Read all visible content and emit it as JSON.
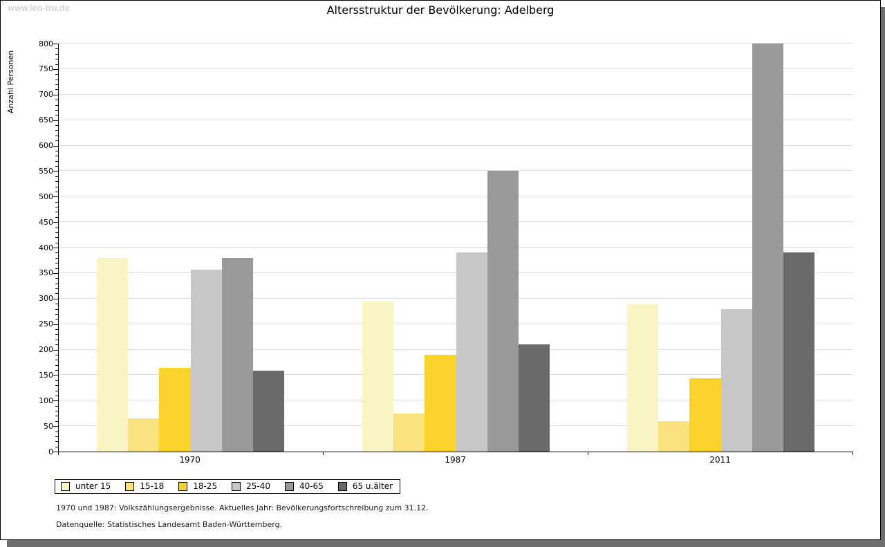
{
  "watermark": "www.leo-bw.de",
  "chart_data": {
    "type": "bar",
    "title": "Altersstruktur der Bevölkerung: Adelberg",
    "xlabel": "",
    "ylabel": "Anzahl Personen",
    "categories": [
      "1970",
      "1987",
      "2011"
    ],
    "series": [
      {
        "name": "unter 15",
        "color": "#faf3c4",
        "values": [
          380,
          294,
          289
        ]
      },
      {
        "name": "15-18",
        "color": "#fae37f",
        "values": [
          65,
          75,
          60
        ]
      },
      {
        "name": "18-25",
        "color": "#fcd32c",
        "values": [
          164,
          190,
          144
        ]
      },
      {
        "name": "25-40",
        "color": "#c7c7c7",
        "values": [
          357,
          391,
          279
        ]
      },
      {
        "name": "40-65",
        "color": "#999999",
        "values": [
          380,
          550,
          800
        ]
      },
      {
        "name": "65 u.älter",
        "color": "#6a6a6a",
        "values": [
          158,
          210,
          390
        ]
      }
    ],
    "ylim": [
      0,
      800
    ],
    "ytick_major": 50,
    "ytick_minor": 10,
    "yticks": [
      0,
      50,
      100,
      150,
      200,
      250,
      300,
      350,
      400,
      450,
      500,
      550,
      600,
      650,
      700,
      750,
      800
    ],
    "grid": true,
    "legend_position": "bottom"
  },
  "footnotes": {
    "line1": "1970 und 1987: Volkszählungsergebnisse. Aktuelles Jahr: Bevölkerungsfortschreibung zum 31.12.",
    "line2": "Datenquelle: Statistisches Landesamt Baden-Württemberg."
  },
  "colors": {
    "page_border": "#000000",
    "page_shadow": "#6e6e6e",
    "gridline": "#dcdcdc",
    "watermark": "#c9c9c9"
  }
}
